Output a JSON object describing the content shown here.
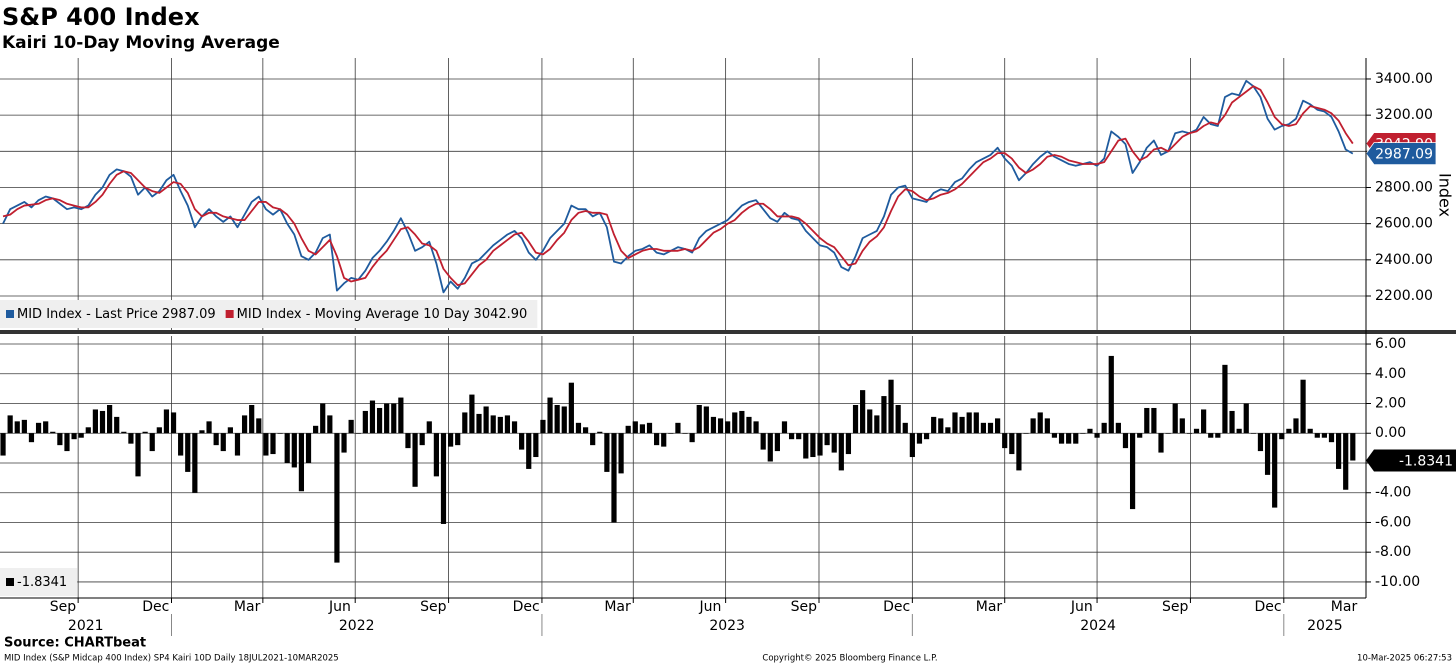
{
  "chart_data": {
    "title": "S&P 400 Index",
    "subtitle": "Kairi 10-Day Moving Average",
    "source": "Source: CHARTbeat",
    "footer_left": "MID Index (S&P Midcap 400 Index) SP4 Kairi 10D  Daily 18JUL2021-10MAR2025",
    "footer_center": "Copyright© 2025 Bloomberg Finance L.P.",
    "footer_right": "10-Mar-2025 06:27:53",
    "x": [
      "2021-07-19",
      "2021-07-26",
      "2021-08-02",
      "2021-08-09",
      "2021-08-16",
      "2021-08-23",
      "2021-08-30",
      "2021-09-06",
      "2021-09-13",
      "2021-09-20",
      "2021-09-27",
      "2021-10-04",
      "2021-10-11",
      "2021-10-18",
      "2021-10-25",
      "2021-11-01",
      "2021-11-08",
      "2021-11-15",
      "2021-11-22",
      "2021-11-29",
      "2021-12-06",
      "2021-12-13",
      "2021-12-20",
      "2021-12-27",
      "2022-01-03",
      "2022-01-10",
      "2022-01-17",
      "2022-01-24",
      "2022-01-31",
      "2022-02-07",
      "2022-02-14",
      "2022-02-21",
      "2022-02-28",
      "2022-03-07",
      "2022-03-14",
      "2022-03-21",
      "2022-03-28",
      "2022-04-04",
      "2022-04-11",
      "2022-04-18",
      "2022-04-25",
      "2022-05-02",
      "2022-05-09",
      "2022-05-16",
      "2022-05-23",
      "2022-05-30",
      "2022-06-06",
      "2022-06-13",
      "2022-06-20",
      "2022-06-27",
      "2022-07-04",
      "2022-07-11",
      "2022-07-18",
      "2022-07-25",
      "2022-08-01",
      "2022-08-08",
      "2022-08-15",
      "2022-08-22",
      "2022-08-29",
      "2022-09-05",
      "2022-09-12",
      "2022-09-19",
      "2022-09-26",
      "2022-10-03",
      "2022-10-10",
      "2022-10-17",
      "2022-10-24",
      "2022-10-31",
      "2022-11-07",
      "2022-11-14",
      "2022-11-21",
      "2022-11-28",
      "2022-12-05",
      "2022-12-12",
      "2022-12-19",
      "2022-12-26",
      "2023-01-02",
      "2023-01-09",
      "2023-01-16",
      "2023-01-23",
      "2023-01-30",
      "2023-02-06",
      "2023-02-13",
      "2023-02-20",
      "2023-02-27",
      "2023-03-06",
      "2023-03-13",
      "2023-03-20",
      "2023-03-27",
      "2023-04-03",
      "2023-04-10",
      "2023-04-17",
      "2023-04-24",
      "2023-05-01",
      "2023-05-08",
      "2023-05-15",
      "2023-05-22",
      "2023-05-29",
      "2023-06-05",
      "2023-06-12",
      "2023-06-19",
      "2023-06-26",
      "2023-07-03",
      "2023-07-10",
      "2023-07-17",
      "2023-07-24",
      "2023-07-31",
      "2023-08-07",
      "2023-08-14",
      "2023-08-21",
      "2023-08-28",
      "2023-09-04",
      "2023-09-11",
      "2023-09-18",
      "2023-09-25",
      "2023-10-02",
      "2023-10-09",
      "2023-10-16",
      "2023-10-23",
      "2023-10-30",
      "2023-11-06",
      "2023-11-13",
      "2023-11-20",
      "2023-11-27",
      "2023-12-04",
      "2023-12-11",
      "2023-12-18",
      "2023-12-25",
      "2024-01-01",
      "2024-01-08",
      "2024-01-15",
      "2024-01-22",
      "2024-01-29",
      "2024-02-05",
      "2024-02-12",
      "2024-02-19",
      "2024-02-26",
      "2024-03-04",
      "2024-03-11",
      "2024-03-18",
      "2024-03-25",
      "2024-04-01",
      "2024-04-08",
      "2024-04-15",
      "2024-04-22",
      "2024-04-29",
      "2024-05-06",
      "2024-05-13",
      "2024-05-20",
      "2024-05-27",
      "2024-06-03",
      "2024-06-10",
      "2024-06-17",
      "2024-06-24",
      "2024-07-01",
      "2024-07-08",
      "2024-07-15",
      "2024-07-22",
      "2024-07-29",
      "2024-08-05",
      "2024-08-12",
      "2024-08-19",
      "2024-08-26",
      "2024-09-02",
      "2024-09-09",
      "2024-09-16",
      "2024-09-23",
      "2024-09-30",
      "2024-10-07",
      "2024-10-14",
      "2024-10-21",
      "2024-10-28",
      "2024-11-04",
      "2024-11-11",
      "2024-11-18",
      "2024-11-25",
      "2024-12-02",
      "2024-12-09",
      "2024-12-16",
      "2024-12-23",
      "2024-12-30",
      "2025-01-06",
      "2025-01-13",
      "2025-01-20",
      "2025-01-27",
      "2025-02-03",
      "2025-02-10",
      "2025-02-17",
      "2025-02-24",
      "2025-03-03",
      "2025-03-10"
    ],
    "xlim": [
      "2021-07-16",
      "2025-03-23"
    ],
    "xticks": [
      {
        "value": "2021-09",
        "label": "Sep"
      },
      {
        "value": "2021-12",
        "label": "Dec"
      },
      {
        "value": "2022-03",
        "label": "Mar"
      },
      {
        "value": "2022-06",
        "label": "Jun"
      },
      {
        "value": "2022-09",
        "label": "Sep"
      },
      {
        "value": "2022-12",
        "label": "Dec"
      },
      {
        "value": "2023-03",
        "label": "Mar"
      },
      {
        "value": "2023-06",
        "label": "Jun"
      },
      {
        "value": "2023-09",
        "label": "Sep"
      },
      {
        "value": "2023-12",
        "label": "Dec"
      },
      {
        "value": "2024-03",
        "label": "Mar"
      },
      {
        "value": "2024-06",
        "label": "Jun"
      },
      {
        "value": "2024-09",
        "label": "Sep"
      },
      {
        "value": "2024-12",
        "label": "Dec"
      },
      {
        "value": "2025-03",
        "label": "Mar"
      }
    ],
    "years": [
      "2021",
      "2022",
      "2023",
      "2024",
      "2025"
    ],
    "panels": [
      {
        "type": "line",
        "ylabel": "Index",
        "ylim": [
          2012,
          3516
        ],
        "grid": true,
        "legend": "bottom-left",
        "yticks": [
          {
            "value": 2200,
            "label": "2200.00"
          },
          {
            "value": 2400,
            "label": "2400.00"
          },
          {
            "value": 2600,
            "label": "2600.00"
          },
          {
            "value": 2800,
            "label": "2800.00"
          },
          {
            "value": 3000,
            "label": "3000.00"
          },
          {
            "value": 3200,
            "label": "3200.00"
          },
          {
            "value": 3400,
            "label": "3400.00"
          }
        ],
        "series": [
          {
            "name": "MID Index - Last Price",
            "color": "#1f5b9e",
            "last_value_label": "2987.09",
            "values": [
              2600,
              2680,
              2700,
              2720,
              2690,
              2730,
              2750,
              2740,
              2710,
              2680,
              2690,
              2680,
              2700,
              2760,
              2800,
              2870,
              2900,
              2890,
              2860,
              2760,
              2800,
              2750,
              2780,
              2840,
              2870,
              2780,
              2700,
              2580,
              2640,
              2680,
              2640,
              2610,
              2640,
              2580,
              2650,
              2720,
              2750,
              2680,
              2650,
              2680,
              2600,
              2540,
              2420,
              2400,
              2440,
              2520,
              2540,
              2230,
              2270,
              2300,
              2290,
              2340,
              2410,
              2450,
              2500,
              2560,
              2630,
              2550,
              2450,
              2470,
              2500,
              2380,
              2220,
              2280,
              2240,
              2300,
              2380,
              2400,
              2440,
              2480,
              2510,
              2540,
              2560,
              2520,
              2440,
              2400,
              2450,
              2520,
              2560,
              2600,
              2700,
              2680,
              2680,
              2640,
              2660,
              2580,
              2390,
              2380,
              2420,
              2450,
              2460,
              2480,
              2440,
              2430,
              2450,
              2470,
              2460,
              2440,
              2520,
              2560,
              2580,
              2600,
              2620,
              2660,
              2700,
              2720,
              2730,
              2680,
              2630,
              2610,
              2660,
              2630,
              2620,
              2560,
              2520,
              2480,
              2470,
              2440,
              2360,
              2340,
              2420,
              2520,
              2540,
              2560,
              2640,
              2760,
              2800,
              2810,
              2740,
              2730,
              2720,
              2770,
              2790,
              2780,
              2830,
              2850,
              2900,
              2940,
              2960,
              2980,
              3020,
              2960,
              2920,
              2840,
              2880,
              2930,
              2970,
              3000,
              2970,
              2950,
              2930,
              2920,
              2930,
              2940,
              2920,
              2960,
              3110,
              3080,
              3040,
              2880,
              2940,
              3020,
              3060,
              2980,
              3000,
              3100,
              3110,
              3100,
              3120,
              3190,
              3150,
              3140,
              3300,
              3320,
              3310,
              3390,
              3360,
              3300,
              3180,
              3120,
              3140,
              3150,
              3180,
              3280,
              3260,
              3230,
              3220,
              3190,
              3110,
              3010,
              2987.09
            ]
          },
          {
            "name": "MID Index - Moving Average 10 Day",
            "color": "#c01f2f",
            "last_value_label": "3042.90",
            "values": [
              2640,
              2650,
              2680,
              2700,
              2705,
              2710,
              2730,
              2740,
              2730,
              2710,
              2700,
              2690,
              2690,
              2720,
              2760,
              2820,
              2870,
              2890,
              2880,
              2840,
              2800,
              2780,
              2770,
              2800,
              2830,
              2820,
              2770,
              2680,
              2640,
              2660,
              2660,
              2640,
              2630,
              2620,
              2620,
              2670,
              2720,
              2720,
              2690,
              2680,
              2650,
              2600,
              2520,
              2450,
              2430,
              2470,
              2510,
              2420,
              2300,
              2280,
              2290,
              2300,
              2360,
              2410,
              2450,
              2510,
              2570,
              2580,
              2540,
              2490,
              2480,
              2450,
              2350,
              2300,
              2260,
              2270,
              2320,
              2370,
              2400,
              2450,
              2480,
              2510,
              2540,
              2550,
              2500,
              2440,
              2430,
              2460,
              2510,
              2550,
              2620,
              2660,
              2670,
              2660,
              2660,
              2650,
              2540,
              2450,
              2410,
              2430,
              2450,
              2460,
              2460,
              2450,
              2450,
              2450,
              2460,
              2450,
              2470,
              2510,
              2550,
              2570,
              2600,
              2620,
              2660,
              2690,
              2710,
              2710,
              2680,
              2640,
              2640,
              2640,
              2630,
              2600,
              2560,
              2520,
              2490,
              2470,
              2420,
              2370,
              2380,
              2450,
              2500,
              2530,
              2580,
              2670,
              2750,
              2790,
              2780,
              2750,
              2730,
              2740,
              2760,
              2770,
              2790,
              2820,
              2860,
              2900,
              2940,
              2960,
              2990,
              2990,
              2960,
              2910,
              2880,
              2900,
              2930,
              2970,
              2980,
              2970,
              2950,
              2940,
              2930,
              2930,
              2930,
              2940,
              3000,
              3060,
              3070,
              3000,
              2950,
              2970,
              3010,
              3020,
              3000,
              3040,
              3080,
              3100,
              3110,
              3140,
              3160,
              3150,
              3200,
              3270,
              3300,
              3330,
              3360,
              3340,
              3270,
              3190,
              3150,
              3140,
              3150,
              3210,
              3250,
              3240,
              3230,
              3210,
              3170,
              3100,
              3042.9
            ]
          }
        ]
      },
      {
        "type": "bar",
        "ylim": [
          -11.08,
          6.54
        ],
        "grid": true,
        "legend": "bottom-left",
        "yticks": [
          {
            "value": -10,
            "label": "-10.00"
          },
          {
            "value": -8,
            "label": "-8.00"
          },
          {
            "value": -6,
            "label": "-6.00"
          },
          {
            "value": -4,
            "label": "-4.00"
          },
          {
            "value": -2,
            "label": "-2.00"
          },
          {
            "value": 0,
            "label": "0.00"
          },
          {
            "value": 2,
            "label": "2.00"
          },
          {
            "value": 4,
            "label": "4.00"
          },
          {
            "value": 6,
            "label": "6.00"
          }
        ],
        "series": [
          {
            "color": "#000000",
            "last_value_label": "-1.8341",
            "values": [
              -1.5,
              1.2,
              0.8,
              0.9,
              -0.6,
              0.7,
              0.8,
              0.1,
              -0.8,
              -1.2,
              -0.4,
              -0.3,
              0.4,
              1.6,
              1.5,
              1.9,
              1.1,
              0.1,
              -0.7,
              -2.9,
              0.1,
              -1.2,
              0.4,
              1.6,
              1.4,
              -1.5,
              -2.6,
              -4.0,
              0.2,
              0.8,
              -0.8,
              -1.2,
              0.4,
              -1.5,
              1.2,
              1.9,
              1.0,
              -1.5,
              -1.4,
              0.0,
              -2.0,
              -2.3,
              -3.9,
              -2.0,
              0.5,
              2.0,
              1.2,
              -8.7,
              -1.3,
              0.9,
              0.0,
              1.5,
              2.2,
              1.7,
              2.0,
              2.0,
              2.4,
              -1.0,
              -3.6,
              -0.8,
              0.8,
              -2.9,
              -6.1,
              -0.9,
              -0.8,
              1.4,
              2.6,
              1.3,
              1.8,
              1.2,
              1.1,
              1.2,
              0.8,
              -1.1,
              -2.4,
              -1.6,
              0.9,
              2.4,
              1.9,
              1.8,
              3.4,
              0.7,
              0.4,
              -0.8,
              0.1,
              -2.6,
              -6.0,
              -2.7,
              0.5,
              0.8,
              0.6,
              0.7,
              -0.8,
              -0.9,
              0.0,
              0.7,
              0.0,
              -0.6,
              1.9,
              1.8,
              1.1,
              1.0,
              0.8,
              1.4,
              1.5,
              1.1,
              0.8,
              -1.1,
              -1.9,
              -1.2,
              0.8,
              -0.4,
              -0.4,
              -1.7,
              -1.6,
              -1.5,
              -0.8,
              -1.3,
              -2.5,
              -1.4,
              1.9,
              2.9,
              1.6,
              1.2,
              2.5,
              3.6,
              1.9,
              0.7,
              -1.6,
              -0.7,
              -0.4,
              1.1,
              1.0,
              0.4,
              1.4,
              1.1,
              1.4,
              1.4,
              0.7,
              0.7,
              1.0,
              -1.0,
              -1.4,
              -2.5,
              0.0,
              1.0,
              1.4,
              1.0,
              -0.3,
              -0.7,
              -0.7,
              -0.7,
              0.0,
              0.3,
              -0.3,
              0.7,
              5.2,
              0.7,
              -1.0,
              -5.1,
              -0.3,
              1.7,
              1.7,
              -1.3,
              0.0,
              2.0,
              1.0,
              0.0,
              0.3,
              1.6,
              -0.3,
              -0.3,
              4.6,
              1.5,
              0.3,
              2.0,
              0.0,
              -1.2,
              -2.8,
              -5.0,
              -0.4,
              0.3,
              1.0,
              3.6,
              0.3,
              -0.3,
              -0.3,
              -0.6,
              -2.4,
              -3.8,
              -1.8341
            ]
          }
        ]
      }
    ]
  }
}
